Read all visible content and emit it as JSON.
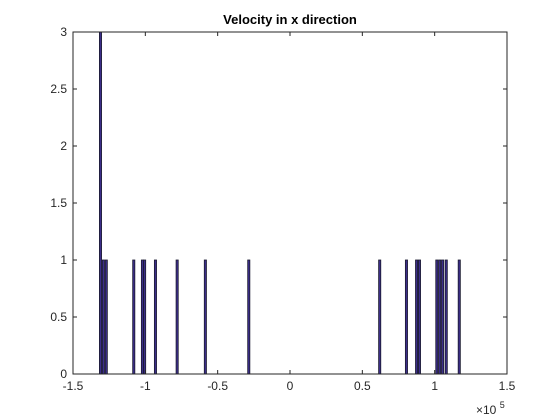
{
  "chart_data": {
    "type": "bar",
    "title": "Velocity in x direction",
    "xlabel": "",
    "ylabel": "",
    "xlim": [
      -150000,
      150000
    ],
    "ylim": [
      0,
      3
    ],
    "x_tick_values": [
      -150000,
      -100000,
      -50000,
      0,
      50000,
      100000,
      150000
    ],
    "x_tick_labels": [
      "-1.5",
      "-1",
      "-0.5",
      "0",
      "0.5",
      "1",
      "1.5"
    ],
    "x_exponent_base": "×10",
    "x_exponent_power": "5",
    "y_tick_values": [
      0,
      0.5,
      1,
      1.5,
      2,
      2.5,
      3
    ],
    "y_tick_labels": [
      "0",
      "0.5",
      "1",
      "1.5",
      "2",
      "2.5",
      "3"
    ],
    "grid": false,
    "bin_width": 1500,
    "bars": [
      {
        "x": -131000,
        "count": 3
      },
      {
        "x": -129000,
        "count": 1
      },
      {
        "x": -127000,
        "count": 1
      },
      {
        "x": -108000,
        "count": 1
      },
      {
        "x": -102000,
        "count": 1
      },
      {
        "x": -100500,
        "count": 1
      },
      {
        "x": -93000,
        "count": 1
      },
      {
        "x": -78000,
        "count": 1
      },
      {
        "x": -58500,
        "count": 1
      },
      {
        "x": -28500,
        "count": 1
      },
      {
        "x": 62000,
        "count": 1
      },
      {
        "x": 80500,
        "count": 1
      },
      {
        "x": 87500,
        "count": 1
      },
      {
        "x": 89500,
        "count": 1
      },
      {
        "x": 101500,
        "count": 1
      },
      {
        "x": 103500,
        "count": 1
      },
      {
        "x": 105500,
        "count": 1
      },
      {
        "x": 108000,
        "count": 1
      },
      {
        "x": 117000,
        "count": 1
      }
    ],
    "colors": {
      "bar_fill": "#3c2e8a",
      "bar_edge": "#1a1a2e",
      "axis": "#262626",
      "text": "#000000"
    }
  }
}
